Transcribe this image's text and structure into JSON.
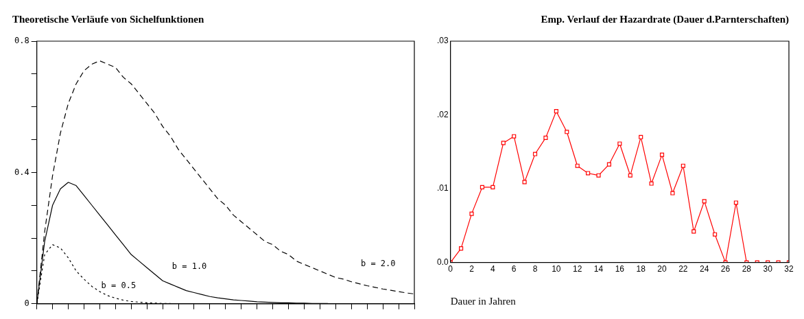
{
  "chart_data": [
    {
      "type": "line",
      "title": "Theoretische Verläufe von Sichelfunktionen",
      "marker": "none",
      "tick_labels": "y",
      "categories": [
        null,
        null,
        null,
        null,
        null,
        null,
        null,
        null,
        null,
        null,
        null,
        null,
        null,
        null,
        null,
        null,
        null,
        null,
        null,
        null,
        null,
        null,
        null,
        null,
        null,
        null,
        null,
        null,
        null,
        null,
        null,
        null,
        null,
        null,
        null,
        null,
        null,
        null,
        null,
        null,
        null,
        null,
        null,
        null,
        null,
        null,
        null,
        null,
        null
      ],
      "ylim": [
        0,
        0.8
      ],
      "yticks": [
        0,
        {
          "value": 0.1,
          "label": null
        },
        {
          "value": 0.2,
          "label": null
        },
        {
          "value": 0.3,
          "label": null
        },
        0.4,
        {
          "value": 0.5,
          "label": null
        },
        {
          "value": 0.6,
          "label": null
        },
        {
          "value": 0.7,
          "label": null
        },
        0.8
      ],
      "series": [
        {
          "name": "b = 2.0",
          "color": "#000000",
          "line_style": "dashed",
          "values": [
            0,
            0.22,
            0.39,
            0.52,
            0.61,
            0.67,
            0.71,
            0.73,
            0.74,
            0.73,
            0.72,
            0.69,
            0.67,
            0.64,
            0.61,
            0.58,
            0.54,
            0.51,
            0.47,
            0.44,
            0.41,
            0.38,
            0.35,
            0.32,
            0.3,
            0.27,
            0.25,
            0.23,
            0.21,
            0.19,
            0.18,
            0.16,
            0.15,
            0.13,
            0.12,
            0.11,
            0.1,
            0.09,
            0.08,
            0.075,
            0.067,
            0.061,
            0.055,
            0.05,
            0.045,
            0.041,
            0.037,
            0.033,
            0.03
          ]
        },
        {
          "name": "b = 1.0",
          "color": "#000000",
          "line_style": "solid",
          "values": [
            0,
            0.19,
            0.3,
            0.35,
            0.37,
            0.36,
            0.33,
            0.3,
            0.27,
            0.24,
            0.21,
            0.18,
            0.15,
            0.13,
            0.11,
            0.09,
            0.07,
            0.06,
            0.05,
            0.04,
            0.034,
            0.028,
            0.022,
            0.018,
            0.015,
            0.012,
            0.01,
            0.008,
            0.006,
            0.005,
            0.004,
            0.003,
            0.003,
            0.002,
            0.002,
            0.001,
            0.001,
            0.001,
            null,
            null,
            null,
            null,
            null,
            null,
            null,
            null,
            null,
            null,
            null
          ]
        },
        {
          "name": "b = 0.5",
          "color": "#000000",
          "line_style": "dotted",
          "values": [
            0,
            0.15,
            0.18,
            0.17,
            0.14,
            0.1,
            0.075,
            0.053,
            0.037,
            0.025,
            0.017,
            0.011,
            0.007,
            0.005,
            0.003,
            0.002,
            0.001,
            0.001,
            null,
            null,
            null,
            null,
            null,
            null,
            null,
            null,
            null,
            null,
            null,
            null,
            null,
            null,
            null,
            null,
            null,
            null,
            null,
            null,
            null,
            null,
            null,
            null,
            null,
            null,
            null,
            null,
            null,
            null,
            null
          ]
        }
      ]
    },
    {
      "type": "line",
      "title": "Emp. Verlauf der Hazardrate (Dauer d.Parnterschaften)",
      "xlabel": "Dauer in Jahren",
      "marker": "square",
      "line_style": "solid",
      "xlim": [
        0,
        32
      ],
      "xticks": [
        0,
        2,
        4,
        6,
        8,
        10,
        12,
        14,
        16,
        18,
        20,
        22,
        24,
        26,
        28,
        30,
        32
      ],
      "ylim": [
        0,
        0.03
      ],
      "yticks": [
        {
          "value": 0,
          "label": "0.0"
        },
        {
          "value": 0.01,
          "label": ".01"
        },
        {
          "value": 0.02,
          "label": ".02"
        },
        {
          "value": 0.03,
          "label": ".03"
        }
      ],
      "series": [
        {
          "color": "#ff0000",
          "x": [
            0,
            1,
            2,
            3,
            4,
            5,
            6,
            7,
            8,
            9,
            10,
            11,
            12,
            13,
            14,
            15,
            16,
            17,
            18,
            19,
            20,
            21,
            22,
            23,
            24,
            25,
            26,
            27,
            28,
            29,
            30,
            31,
            32
          ],
          "values": [
            0,
            0.0019,
            0.0066,
            0.0102,
            0.0102,
            0.0162,
            0.0171,
            0.0109,
            0.0147,
            0.0169,
            0.0205,
            0.0177,
            0.0131,
            0.0121,
            0.0118,
            0.0133,
            0.0161,
            0.0118,
            0.017,
            0.0107,
            0.0146,
            0.0094,
            0.0131,
            0.0042,
            0.0083,
            0.0038,
            0,
            0.0081,
            0,
            0,
            0,
            0,
            0
          ]
        }
      ]
    }
  ]
}
